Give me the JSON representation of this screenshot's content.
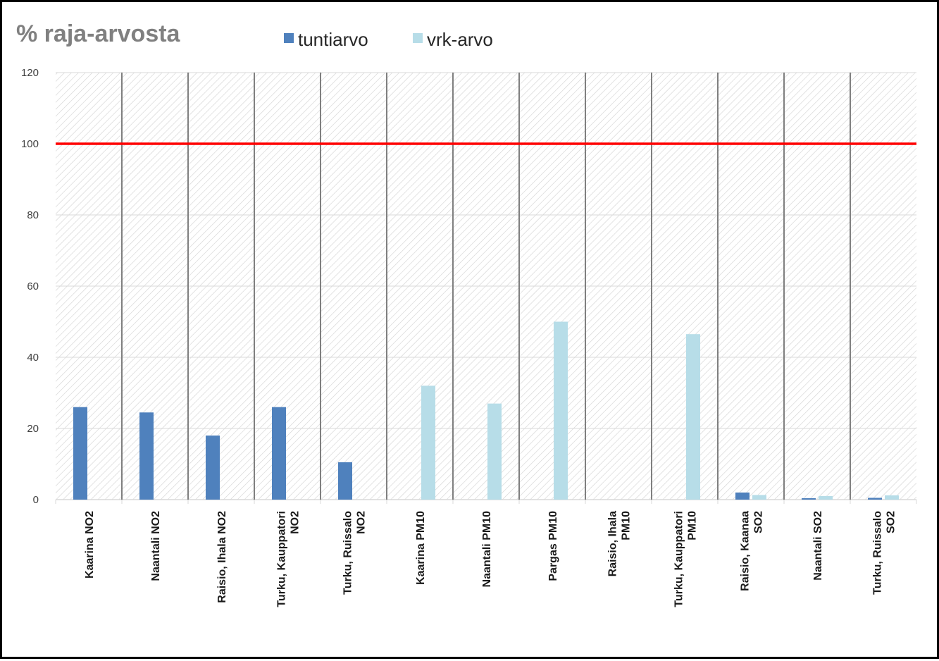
{
  "chart_data": {
    "type": "bar",
    "title": "% raja-arvosta",
    "categories": [
      "Kaarina NO2",
      "Naantali NO2",
      "Raisio, Ihala NO2",
      "Turku, Kauppatori NO2",
      "Turku, Ruissalo NO2",
      "Kaarina PM10",
      "Naantali PM10",
      "Pargas PM10",
      "Raisio, Ihala PM10",
      "Turku, Kauppatori PM10",
      "Raisio, Kaanaa SO2",
      "Naantali SO2",
      "Turku, Ruissalo SO2"
    ],
    "series": [
      {
        "name": "tuntiarvo",
        "color": "#4f81bd",
        "values": [
          26,
          24.5,
          18,
          26,
          10.5,
          0,
          0,
          0,
          0,
          0,
          2,
          0.4,
          0.5
        ]
      },
      {
        "name": "vrk-arvo",
        "color": "#b7dde8",
        "values": [
          0,
          0,
          0,
          0,
          0,
          32,
          27,
          50,
          0,
          46.5,
          1.3,
          1.0,
          1.2
        ]
      }
    ],
    "ylim": [
      0,
      120
    ],
    "yticks": [
      0,
      20,
      40,
      60,
      80,
      100,
      120
    ],
    "reference_line": {
      "value": 100,
      "color": "#ff0000"
    },
    "legend_position": "top",
    "grid": true,
    "xlabel": "",
    "ylabel": ""
  }
}
